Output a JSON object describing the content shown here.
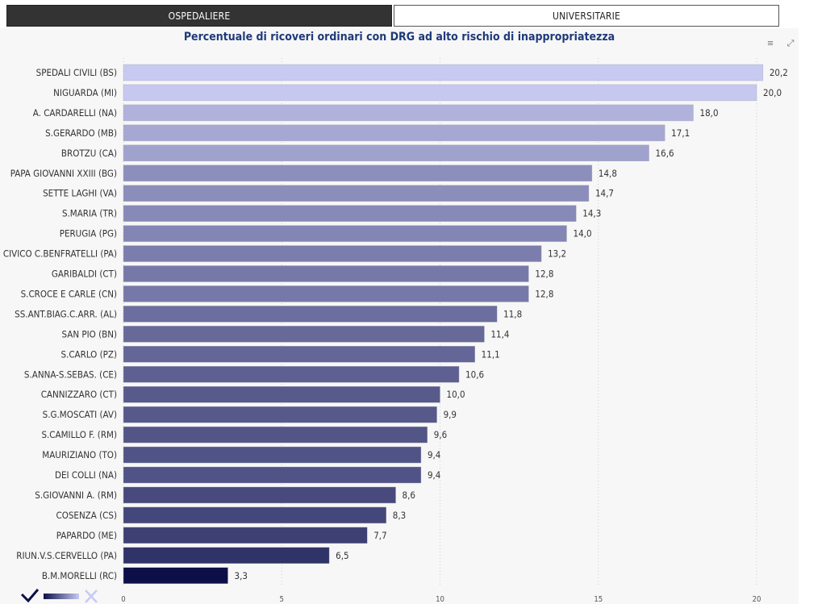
{
  "tabs": [
    {
      "label": "OSPEDALIERE",
      "active": true
    },
    {
      "label": "UNIVERSITARIE",
      "active": false
    }
  ],
  "header": {
    "filter_icon": "filter-icon",
    "focus_icon": "focus-mode-icon"
  },
  "legend": {
    "check_icon": "check-icon",
    "gradient_icon": "gradient-swatch-icon",
    "x_icon": "x-icon"
  },
  "chart_data": {
    "type": "bar",
    "orientation": "horizontal",
    "title": "Percentuale di ricoveri ordinari con DRG ad alto rischio di inappropriatezza",
    "categories": [
      "SPEDALI CIVILI (BS)",
      "NIGUARDA (MI)",
      "A. CARDARELLI (NA)",
      "S.GERARDO (MB)",
      "BROTZU (CA)",
      "PAPA GIOVANNI XXIII (BG)",
      "SETTE LAGHI (VA)",
      "S.MARIA (TR)",
      "PERUGIA (PG)",
      "CIVICO C.BENFRATELLI (PA)",
      "GARIBALDI (CT)",
      "S.CROCE E CARLE (CN)",
      "SS.ANT.BIAG.C.ARR. (AL)",
      "SAN PIO (BN)",
      "S.CARLO (PZ)",
      "S.ANNA-S.SEBAS. (CE)",
      "CANNIZZARO (CT)",
      "S.G.MOSCATI (AV)",
      "S.CAMILLO F. (RM)",
      "MAURIZIANO (TO)",
      "DEI COLLI (NA)",
      "S.GIOVANNI A. (RM)",
      "COSENZA (CS)",
      "PAPARDO (ME)",
      "RIUN.V.S.CERVELLO (PA)",
      "B.M.MORELLI (RC)"
    ],
    "values": [
      20.2,
      20.0,
      18.0,
      17.1,
      16.6,
      14.8,
      14.7,
      14.3,
      14.0,
      13.2,
      12.8,
      12.8,
      11.8,
      11.4,
      11.1,
      10.6,
      10.0,
      9.9,
      9.6,
      9.4,
      9.4,
      8.6,
      8.3,
      7.7,
      6.5,
      3.3
    ],
    "value_labels": [
      "20,2",
      "20,0",
      "18,0",
      "17,1",
      "16,6",
      "14,8",
      "14,7",
      "14,3",
      "14,0",
      "13,2",
      "12,8",
      "12,8",
      "11,8",
      "11,4",
      "11,1",
      "10,6",
      "10,0",
      "9,9",
      "9,6",
      "9,4",
      "9,4",
      "8,6",
      "8,3",
      "7,7",
      "6,5",
      "3,3"
    ],
    "xticks": [
      0,
      5,
      10,
      15,
      20
    ],
    "xtick_labels": [
      "0",
      "5",
      "10",
      "15",
      "20"
    ],
    "xlim": [
      0,
      21.5
    ],
    "grid": true,
    "color_scale": {
      "low": "#0d1048",
      "high": "#c8caf2"
    }
  }
}
